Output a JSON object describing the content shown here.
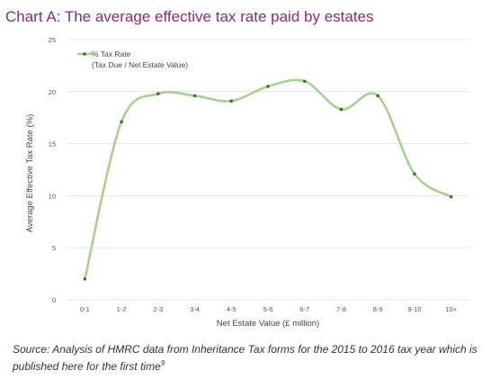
{
  "title": "Chart A: The average effective tax rate paid by estates",
  "source": {
    "text": "Source: Analysis of HMRC data from Inheritance Tax forms for the 2015 to 2016 tax year which is published here for the first time",
    "footnote": "9"
  },
  "colors": {
    "title": "#8a2a7a",
    "line": "#a8d18d",
    "marker": "#3f6e38",
    "grid": "#e4e4e4"
  },
  "chart_data": {
    "type": "line",
    "categories": [
      "0-1",
      "1-2",
      "2-3",
      "3-4",
      "4-5",
      "5-6",
      "6-7",
      "7-8",
      "8-9",
      "9-10",
      "10+"
    ],
    "series": [
      {
        "name": "% Tax Rate",
        "name_line2": "(Tax Due / Net Estate Value)",
        "values": [
          2.0,
          17.1,
          19.8,
          19.6,
          19.1,
          20.5,
          21.0,
          18.3,
          19.6,
          12.1,
          9.9
        ]
      }
    ],
    "xlabel": "Net Estate Value (£ million)",
    "ylabel": "Average Effective Tax Rate (%)",
    "ylim": [
      0,
      25
    ],
    "yticks": [
      "0",
      "5",
      "10",
      "15",
      "20",
      "25"
    ],
    "grid": true,
    "smooth": true,
    "legend": "top-left"
  }
}
